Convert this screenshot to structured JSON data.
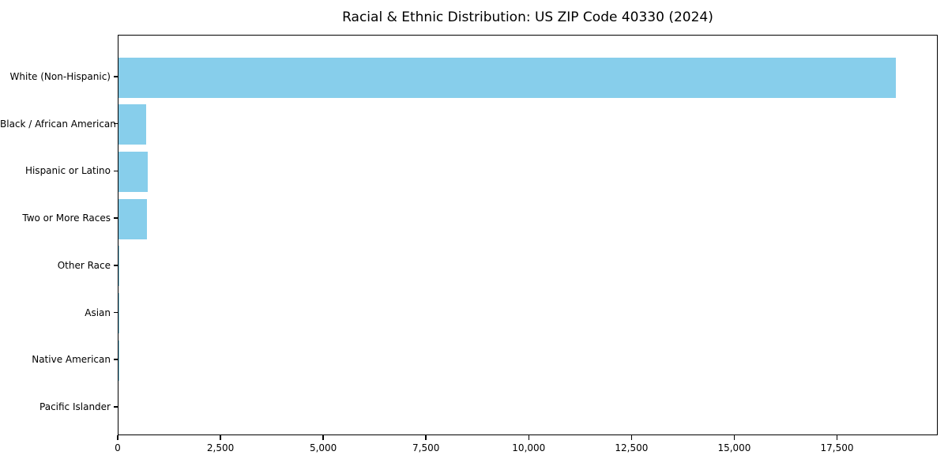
{
  "chart_data": {
    "type": "bar",
    "orientation": "horizontal",
    "title": "Racial & Ethnic Distribution: US ZIP Code 40330 (2024)",
    "xlabel": "",
    "ylabel": "",
    "categories": [
      "White (Non-Hispanic)",
      "Black / African American",
      "Hispanic or Latino",
      "Two or More Races",
      "Other Race",
      "Asian",
      "Native American",
      "Pacific Islander"
    ],
    "values": [
      18950,
      675,
      710,
      695,
      20,
      15,
      5,
      0
    ],
    "xlim": [
      0,
      19950
    ],
    "xticks": {
      "values": [
        0,
        2500,
        5000,
        7500,
        10000,
        12500,
        15000,
        17500
      ],
      "labels": [
        "0",
        "2,500",
        "5,000",
        "7,500",
        "10,000",
        "12,500",
        "15,000",
        "17,500"
      ]
    },
    "bar_color": "#87CEEB",
    "axis_color": "#000000",
    "text_color": "#000000",
    "background_color": "#FFFFFF",
    "grid": false,
    "legend": null
  }
}
